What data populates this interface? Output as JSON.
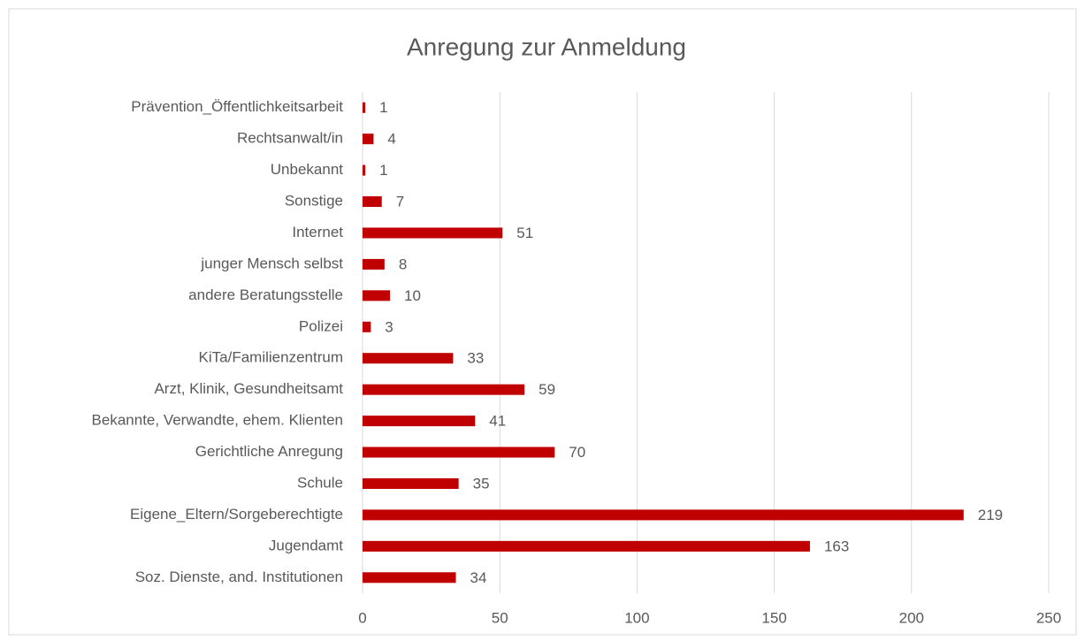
{
  "chart_data": {
    "type": "bar",
    "orientation": "horizontal",
    "title": "Anregung zur Anmeldung",
    "categories": [
      "Prävention_Öffentlichkeitsarbeit",
      "Rechtsanwalt/in",
      "Unbekannt",
      "Sonstige",
      "Internet",
      "junger Mensch selbst",
      "andere Beratungsstelle",
      "Polizei",
      "KiTa/Familienzentrum",
      "Arzt, Klinik, Gesundheitsamt",
      "Bekannte, Verwandte, ehem. Klienten",
      "Gerichtliche Anregung",
      "Schule",
      "Eigene_Eltern/Sorgeberechtigte",
      "Jugendamt",
      "Soz. Dienste, and. Institutionen"
    ],
    "values": [
      1,
      4,
      1,
      7,
      51,
      8,
      10,
      3,
      33,
      59,
      41,
      70,
      35,
      219,
      163,
      34
    ],
    "color": "#c00000",
    "xlim": [
      0,
      250
    ],
    "xticks": [
      0,
      50,
      100,
      150,
      200,
      250
    ],
    "grid": true
  }
}
